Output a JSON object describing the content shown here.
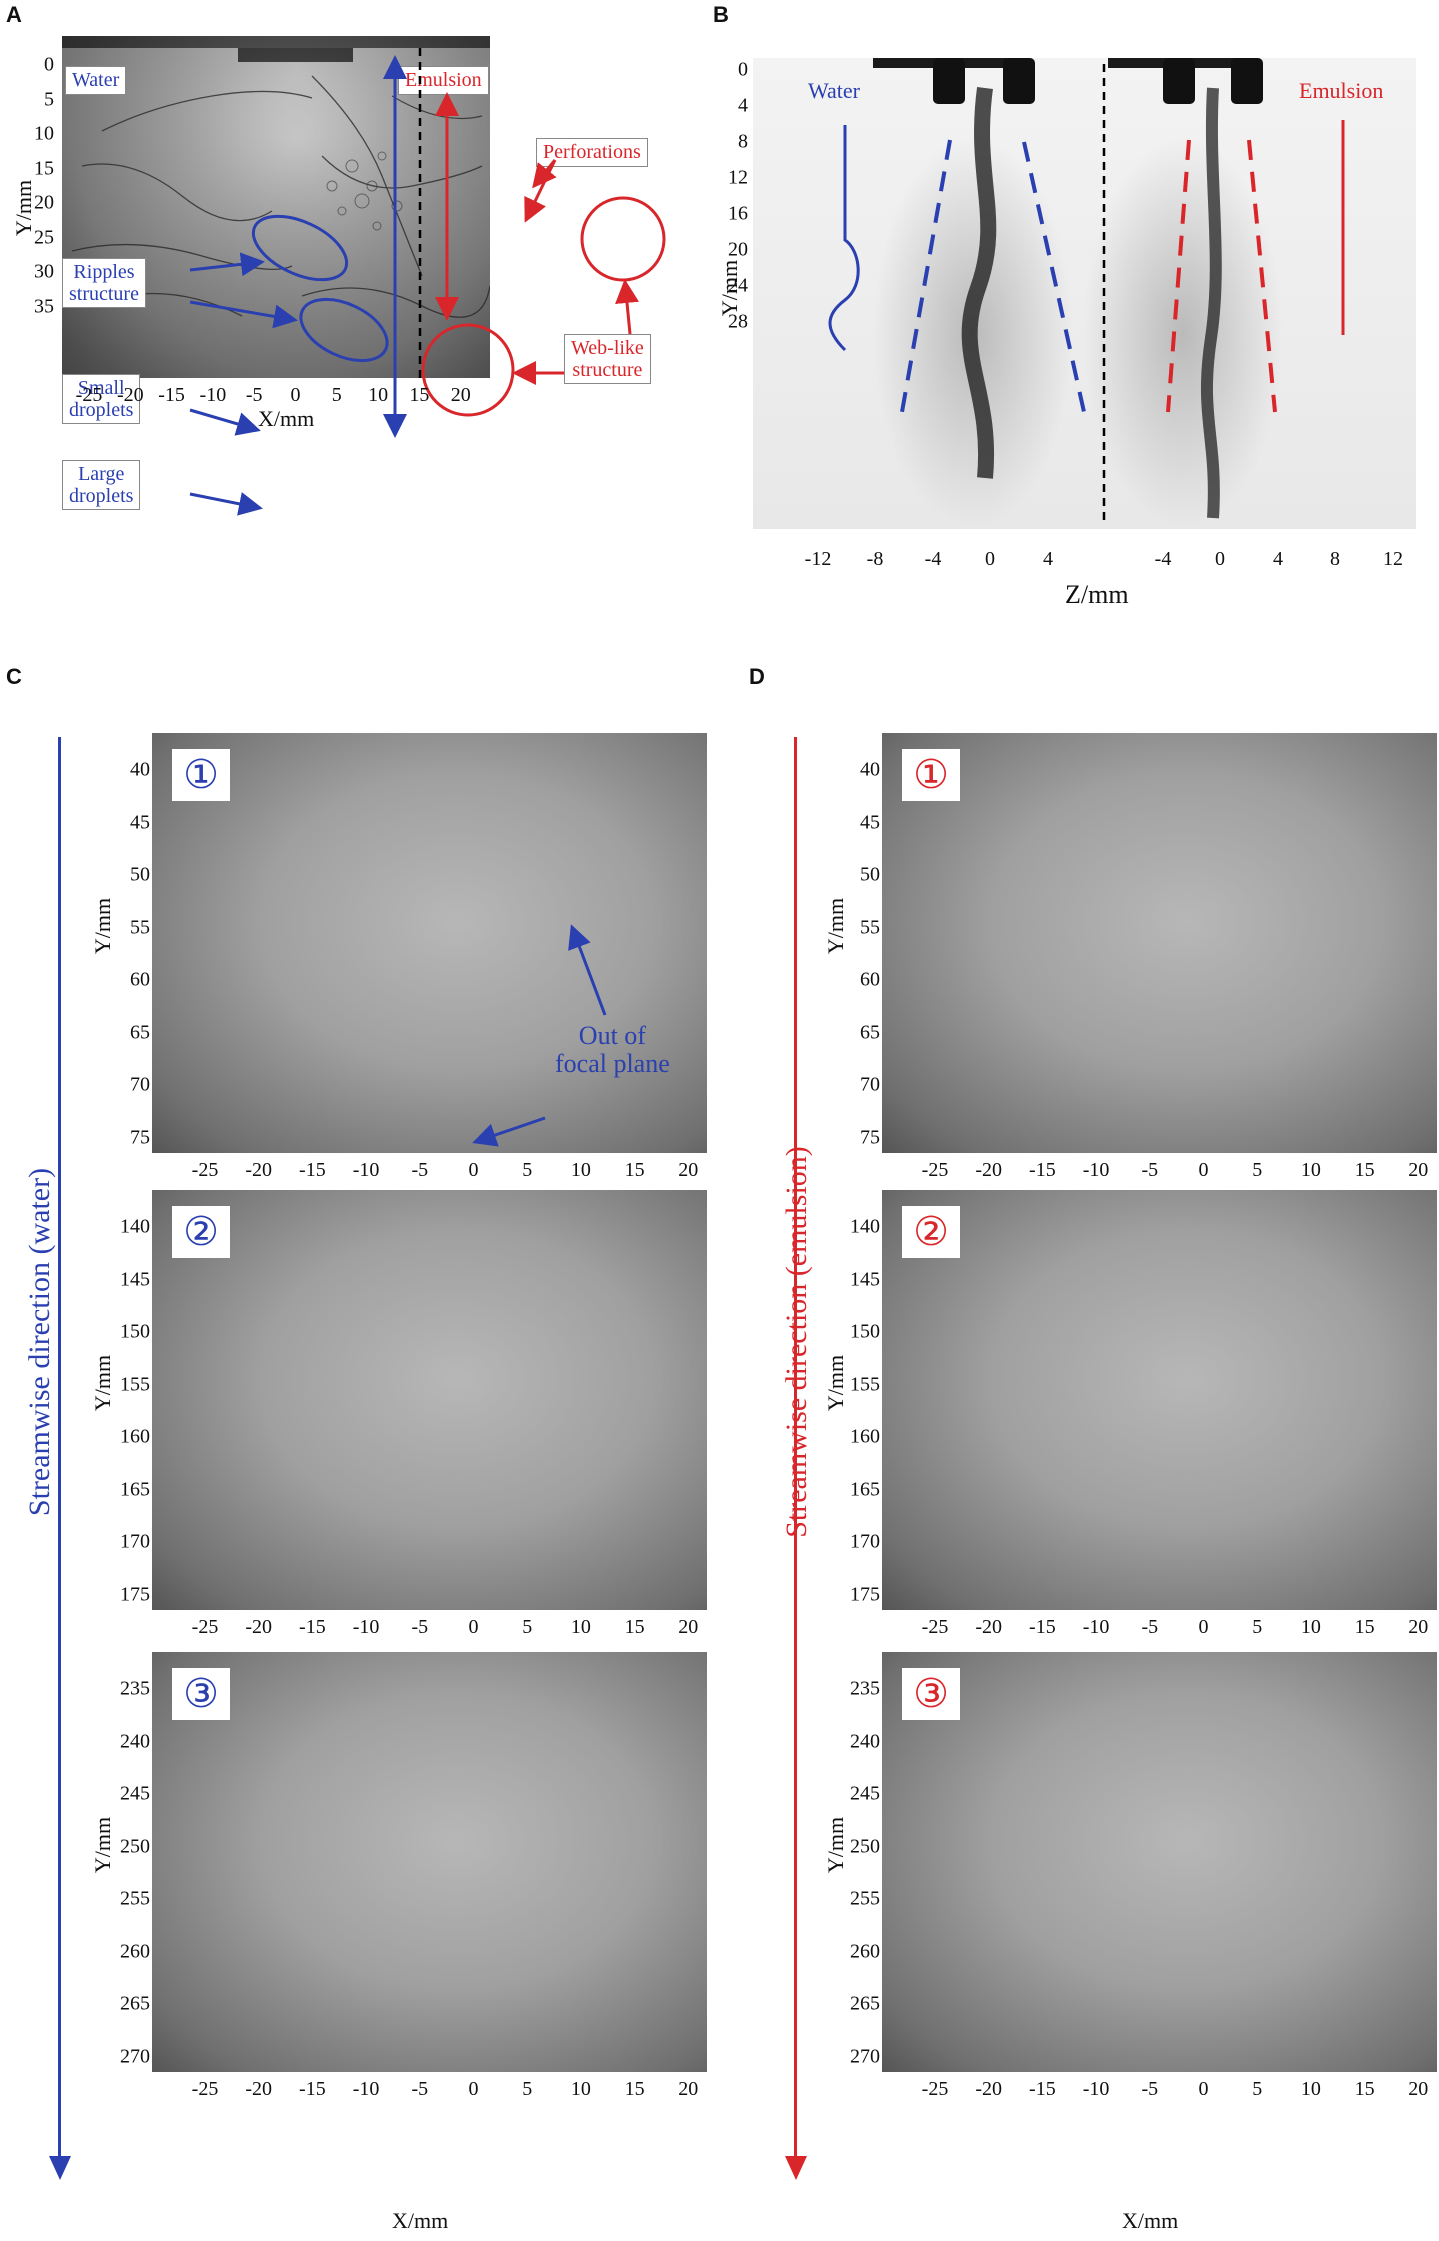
{
  "panels": {
    "A": {
      "label": "A",
      "water_box": "Water",
      "emulsion_box": "Emulsion",
      "yticks": [
        "0",
        "5",
        "10",
        "15",
        "20",
        "25",
        "30",
        "35"
      ],
      "xticks": [
        "-25",
        "-20",
        "-15",
        "-10",
        "-5",
        "0",
        "5",
        "10",
        "15",
        "20"
      ],
      "ylabel": "Y/mm",
      "xlabel": "X/mm",
      "annotations": {
        "ripples": "Ripples\nstructure",
        "small_droplets": "Small\ndroplets",
        "large_droplets": "Large\ndroplets",
        "perforations": "Perforations",
        "web_like": "Web-like\nstructure"
      }
    },
    "B": {
      "label": "B",
      "water_text": "Water",
      "emulsion_text": "Emulsion",
      "yticks": [
        "0",
        "4",
        "8",
        "12",
        "16",
        "20",
        "24",
        "28"
      ],
      "xticks": [
        "-12",
        "-8",
        "-4",
        "0",
        "4",
        "-4",
        "0",
        "4",
        "8",
        "12"
      ],
      "ylabel": "Y/mm",
      "xlabel": "Z/mm"
    },
    "C": {
      "label": "C",
      "stream_label": "Streamwise direction (water)",
      "xlabel": "X/mm",
      "ylabel": "Y/mm",
      "xticks": [
        "-25",
        "-20",
        "-15",
        "-10",
        "-5",
        "0",
        "5",
        "10",
        "15",
        "20"
      ],
      "sub": [
        {
          "num": "①",
          "yticks": [
            "40",
            "45",
            "50",
            "55",
            "60",
            "65",
            "70",
            "75"
          ]
        },
        {
          "num": "②",
          "yticks": [
            "140",
            "145",
            "150",
            "155",
            "160",
            "165",
            "170",
            "175"
          ]
        },
        {
          "num": "③",
          "yticks": [
            "235",
            "240",
            "245",
            "250",
            "255",
            "260",
            "265",
            "270"
          ]
        }
      ],
      "annotation": "Out of\nfocal plane"
    },
    "D": {
      "label": "D",
      "stream_label": "Streamwise  direction (emulsion)",
      "xlabel": "X/mm",
      "ylabel": "Y/mm",
      "xticks": [
        "-25",
        "-20",
        "-15",
        "-10",
        "-5",
        "0",
        "5",
        "10",
        "15",
        "20"
      ],
      "sub": [
        {
          "num": "①",
          "yticks": [
            "40",
            "45",
            "50",
            "55",
            "60",
            "65",
            "70",
            "75"
          ]
        },
        {
          "num": "②",
          "yticks": [
            "140",
            "145",
            "150",
            "155",
            "160",
            "165",
            "170",
            "175"
          ]
        },
        {
          "num": "③",
          "yticks": [
            "235",
            "240",
            "245",
            "250",
            "255",
            "260",
            "265",
            "270"
          ]
        }
      ]
    }
  },
  "colors": {
    "water": "#2a3fb0",
    "emulsion": "#d8262a"
  }
}
